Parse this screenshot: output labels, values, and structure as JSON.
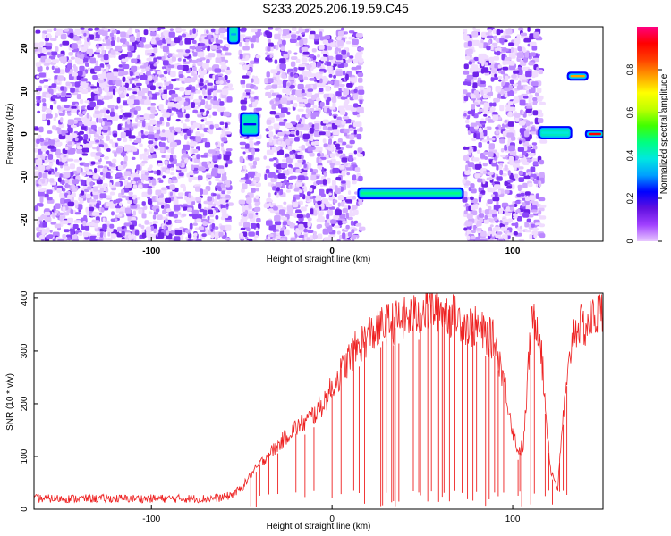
{
  "title": "S233.2025.206.19.59.C45",
  "chart_data": [
    {
      "type": "heatmap",
      "xlabel": "Height of straight line (km)",
      "ylabel": "Frequency (Hz)",
      "xlim": [
        -165,
        150
      ],
      "ylim": [
        -25,
        25
      ],
      "x_ticks": [
        -100,
        0,
        100
      ],
      "y_ticks": [
        -20,
        -10,
        0,
        10,
        20
      ],
      "colorbar": {
        "label": "Normalized spectral amplitude",
        "range": [
          0,
          1
        ],
        "ticks": [
          0,
          0.2,
          0.4,
          0.6,
          0.8
        ],
        "colors": [
          "#e8c8ff",
          "#a040ff",
          "#6010e0",
          "#0000ff",
          "#00a0ff",
          "#00e8e0",
          "#00ff80",
          "#40ff00",
          "#c0ff00",
          "#ffff00",
          "#ffa000",
          "#ff4000",
          "#ff0000",
          "#ff0080"
        ]
      },
      "noise_regions": [
        {
          "x": [
            -165,
            -58
          ]
        },
        {
          "x": [
            -52,
            -42
          ]
        },
        {
          "x": [
            -38,
            15
          ]
        },
        {
          "x": [
            72,
            115
          ]
        }
      ],
      "features": [
        {
          "x": [
            -57,
            -52
          ],
          "y": [
            22,
            24.5
          ],
          "amplitude": 0.3
        },
        {
          "x": [
            -50,
            -41
          ],
          "y": [
            0.5,
            4
          ],
          "amplitude": 0.2
        },
        {
          "x": [
            15,
            72
          ],
          "y": [
            -14.2,
            -13.5
          ],
          "amplitude": 0.45
        },
        {
          "x": [
            115,
            132
          ],
          "y": [
            -0.2,
            0.8
          ],
          "amplitude": 0.4
        },
        {
          "x": [
            131,
            141
          ],
          "y": [
            13.5,
            13.5
          ],
          "amplitude": 0.8
        },
        {
          "x": [
            141,
            150
          ],
          "y": [
            0,
            0
          ],
          "amplitude": 0.95
        }
      ]
    },
    {
      "type": "line",
      "xlabel": "Height of straight line (km)",
      "ylabel": "SNR (10 * v/v)",
      "xlim": [
        -165,
        150
      ],
      "ylim": [
        0,
        410
      ],
      "x_ticks": [
        -100,
        0,
        100
      ],
      "y_ticks": [
        0,
        100,
        200,
        300,
        400
      ],
      "series": [
        {
          "color": "#ee2222",
          "x": [
            -165,
            -150,
            -130,
            -110,
            -90,
            -70,
            -60,
            -55,
            -50,
            -45,
            -40,
            -35,
            -30,
            -25,
            -20,
            -15,
            -10,
            -5,
            0,
            5,
            10,
            15,
            20,
            25,
            30,
            35,
            40,
            45,
            50,
            55,
            60,
            65,
            70,
            75,
            80,
            85,
            90,
            95,
            100,
            103,
            106,
            108,
            110,
            112,
            115,
            118,
            121,
            125,
            128,
            130,
            133,
            136,
            140,
            145,
            150
          ],
          "y": [
            20,
            20,
            20,
            20,
            20,
            20,
            22,
            28,
            40,
            65,
            85,
            105,
            120,
            140,
            155,
            165,
            180,
            200,
            230,
            260,
            290,
            310,
            330,
            340,
            350,
            355,
            360,
            365,
            375,
            380,
            380,
            370,
            360,
            350,
            345,
            330,
            320,
            250,
            150,
            110,
            120,
            230,
            340,
            360,
            340,
            200,
            75,
            40,
            180,
            230,
            330,
            350,
            345,
            365,
            375
          ]
        }
      ],
      "dropouts_x": [
        -45,
        -42,
        -40,
        -35,
        -30,
        -20,
        -15,
        -10,
        0,
        5,
        12,
        15,
        18,
        27,
        28,
        30,
        33,
        34,
        35,
        37,
        45,
        48,
        49,
        53,
        55,
        59,
        61,
        62,
        65,
        68,
        72,
        75,
        78,
        80,
        85,
        87,
        90,
        92,
        95,
        103,
        104,
        105,
        110,
        112,
        118,
        120,
        122,
        125,
        126,
        128,
        130
      ]
    }
  ]
}
